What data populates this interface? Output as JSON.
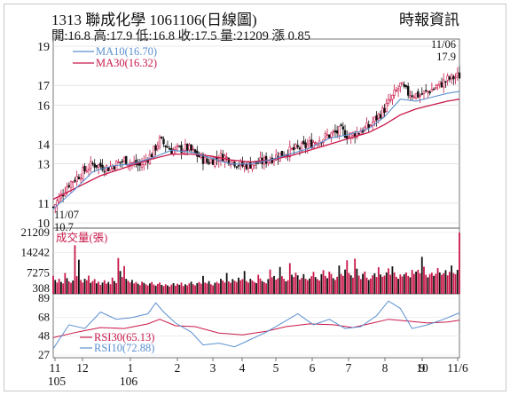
{
  "header": {
    "title": "1313  聯成化學 1061106(日線圖)",
    "source": "時報資訊",
    "quote": "開:16.8 高:17.9 低:16.8 收:17.5 量:21209 漲 0.85"
  },
  "chart_data": [
    {
      "type": "candlestick",
      "yticks": [
        10,
        11,
        13,
        14,
        16,
        17,
        19
      ],
      "ylim": [
        10,
        19
      ],
      "legend": [
        {
          "label": "MA10(16.70)",
          "color": "#5a8fd0"
        },
        {
          "label": "MA30(16.32)",
          "color": "#c8184a"
        }
      ],
      "annotations": [
        {
          "text": "11/07",
          "pos": "bottom-left"
        },
        {
          "text": "10.7",
          "pos": "bottom-left"
        },
        {
          "text": "11/06",
          "pos": "top-right"
        },
        {
          "text": "17.9",
          "pos": "top-right"
        }
      ],
      "price_path": [
        [
          0,
          10.8
        ],
        [
          8,
          12.0
        ],
        [
          20,
          13.0
        ],
        [
          28,
          12.8
        ],
        [
          36,
          13.2
        ],
        [
          44,
          12.9
        ],
        [
          50,
          13.5
        ],
        [
          54,
          14.2
        ],
        [
          60,
          13.7
        ],
        [
          68,
          13.8
        ],
        [
          78,
          13.1
        ],
        [
          86,
          13.4
        ],
        [
          96,
          12.9
        ],
        [
          106,
          13.1
        ],
        [
          118,
          13.6
        ],
        [
          128,
          13.9
        ],
        [
          136,
          14.3
        ],
        [
          146,
          14.7
        ],
        [
          150,
          14.4
        ],
        [
          160,
          14.9
        ],
        [
          168,
          15.8
        ],
        [
          172,
          16.4
        ],
        [
          176,
          17.0
        ],
        [
          180,
          16.6
        ],
        [
          186,
          16.5
        ],
        [
          194,
          16.9
        ],
        [
          200,
          17.3
        ],
        [
          206,
          17.5
        ]
      ],
      "ma10_path": [
        [
          0,
          10.7
        ],
        [
          10,
          11.6
        ],
        [
          20,
          12.6
        ],
        [
          30,
          12.9
        ],
        [
          40,
          13.0
        ],
        [
          50,
          13.3
        ],
        [
          60,
          13.7
        ],
        [
          70,
          13.6
        ],
        [
          80,
          13.3
        ],
        [
          90,
          13.0
        ],
        [
          100,
          13.0
        ],
        [
          110,
          13.2
        ],
        [
          120,
          13.5
        ],
        [
          130,
          13.8
        ],
        [
          140,
          14.3
        ],
        [
          150,
          14.5
        ],
        [
          160,
          14.8
        ],
        [
          168,
          15.4
        ],
        [
          176,
          16.3
        ],
        [
          184,
          16.2
        ],
        [
          192,
          16.4
        ],
        [
          200,
          16.6
        ],
        [
          206,
          16.7
        ]
      ],
      "ma30_path": [
        [
          0,
          11.2
        ],
        [
          12,
          11.8
        ],
        [
          24,
          12.4
        ],
        [
          36,
          12.8
        ],
        [
          48,
          13.2
        ],
        [
          60,
          13.5
        ],
        [
          70,
          13.5
        ],
        [
          80,
          13.4
        ],
        [
          90,
          13.2
        ],
        [
          100,
          13.1
        ],
        [
          110,
          13.2
        ],
        [
          120,
          13.4
        ],
        [
          130,
          13.7
        ],
        [
          140,
          14.0
        ],
        [
          150,
          14.3
        ],
        [
          160,
          14.6
        ],
        [
          168,
          15.0
        ],
        [
          176,
          15.5
        ],
        [
          184,
          15.8
        ],
        [
          192,
          16.0
        ],
        [
          200,
          16.2
        ],
        [
          206,
          16.3
        ]
      ]
    },
    {
      "type": "bar",
      "title": "成交量(張)",
      "yticks": [
        21209,
        14242,
        7275,
        308
      ],
      "ylim": [
        0,
        21209
      ],
      "volumes": [
        6200,
        4800,
        3900,
        5200,
        4100,
        3600,
        7200,
        5400,
        4300,
        3800,
        4600,
        16800,
        6100,
        11800,
        4800,
        3900,
        5200,
        4700,
        6300,
        3800,
        4400,
        5100,
        3600,
        4200,
        3100,
        3900,
        4700,
        3500,
        4100,
        3300,
        5600,
        4400,
        3700,
        12400,
        7900,
        5800,
        9600,
        5200,
        4500,
        3900,
        4800,
        3600,
        4100,
        3500,
        3000,
        4200,
        3800,
        3300,
        2900,
        3600,
        4100,
        3200,
        2800,
        3400,
        3900,
        3100,
        2700,
        3300,
        2900,
        2500,
        3200,
        3700,
        2800,
        3500,
        3100,
        3900,
        2700,
        3300,
        2900,
        3600,
        4200,
        3300,
        2900,
        3700,
        4100,
        3500,
        6200,
        3900,
        3600,
        4400,
        3300,
        2900,
        3800,
        4100,
        3600,
        5200,
        4600,
        3900,
        7200,
        4300,
        3800,
        5100,
        4500,
        4100,
        5600,
        4700,
        5100,
        7900,
        4400,
        3900,
        5200,
        4600,
        4100,
        3700,
        6600,
        5300,
        4400,
        4000,
        3600,
        5100,
        8400,
        5700,
        6200,
        4900,
        5400,
        9300,
        6100,
        5200,
        4300,
        4700,
        10600,
        6600,
        5800,
        7300,
        6400,
        4900,
        5500,
        6800,
        5200,
        4700,
        5300,
        6100,
        7600,
        5800,
        5100,
        4600,
        6800,
        8200,
        6200,
        5400,
        7700,
        6900,
        5400,
        4800,
        5900,
        9800,
        6900,
        6200,
        8400,
        11600,
        7200,
        6400,
        5600,
        12200,
        8700,
        6300,
        5100,
        6900,
        7700,
        5600,
        4800,
        5300,
        6400,
        7100,
        5800,
        9200,
        6700,
        5900,
        6300,
        7400,
        8800,
        6600,
        9500,
        7400,
        5900,
        5200,
        6700,
        6000,
        6800,
        7400,
        6200,
        5700,
        8300,
        6900,
        7700,
        8300,
        7100,
        12800,
        9400,
        6600,
        5700,
        6800,
        7300,
        6200,
        6900,
        8900,
        7400,
        6600,
        7100,
        8200,
        6400,
        7600,
        9800,
        7200,
        6800,
        8300,
        21209
      ]
    },
    {
      "type": "line",
      "yticks": [
        89,
        68,
        48,
        27
      ],
      "ylim": [
        27,
        89
      ],
      "series": [
        {
          "name": "RSI30(65.13)",
          "color": "#c8184a",
          "points": [
            [
              0,
              46
            ],
            [
              12,
              52
            ],
            [
              24,
              57
            ],
            [
              36,
              56
            ],
            [
              48,
              61
            ],
            [
              54,
              66
            ],
            [
              62,
              59
            ],
            [
              72,
              58
            ],
            [
              84,
              51
            ],
            [
              96,
              49
            ],
            [
              108,
              53
            ],
            [
              118,
              58
            ],
            [
              130,
              61
            ],
            [
              142,
              60
            ],
            [
              152,
              57
            ],
            [
              162,
              62
            ],
            [
              170,
              66
            ],
            [
              180,
              64
            ],
            [
              190,
              62
            ],
            [
              200,
              63
            ],
            [
              206,
              65
            ]
          ]
        },
        {
          "name": "RSI10(72.88)",
          "color": "#5a8fd0",
          "points": [
            [
              0,
              34
            ],
            [
              8,
              60
            ],
            [
              16,
              56
            ],
            [
              24,
              74
            ],
            [
              32,
              66
            ],
            [
              40,
              68
            ],
            [
              48,
              72
            ],
            [
              52,
              84
            ],
            [
              56,
              74
            ],
            [
              62,
              62
            ],
            [
              70,
              52
            ],
            [
              76,
              38
            ],
            [
              84,
              40
            ],
            [
              92,
              36
            ],
            [
              100,
              44
            ],
            [
              108,
              52
            ],
            [
              116,
              62
            ],
            [
              124,
              72
            ],
            [
              132,
              60
            ],
            [
              140,
              66
            ],
            [
              148,
              56
            ],
            [
              156,
              58
            ],
            [
              164,
              70
            ],
            [
              170,
              86
            ],
            [
              176,
              78
            ],
            [
              182,
              56
            ],
            [
              190,
              60
            ],
            [
              198,
              66
            ],
            [
              206,
              73
            ]
          ]
        }
      ]
    }
  ],
  "xaxis": {
    "tick_labels": [
      "11",
      "12",
      "1",
      "2",
      "3",
      "4",
      "5",
      "6",
      "7",
      "8",
      "9",
      "10",
      "11/6"
    ],
    "year_labels": [
      "105",
      "106"
    ]
  }
}
